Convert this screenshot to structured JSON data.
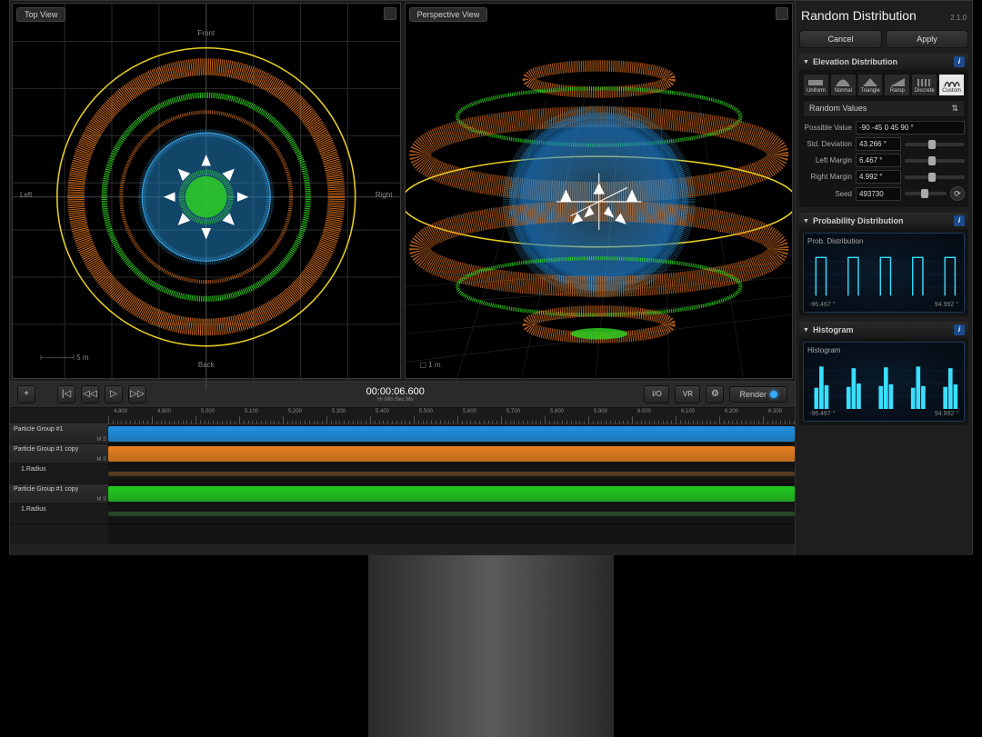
{
  "side": {
    "title": "Random Distribution",
    "version": "2.1.0",
    "cancel": "Cancel",
    "apply": "Apply",
    "elev_section": "Elevation Distribution",
    "dist_types": [
      "Uniform",
      "Normal",
      "Triangle",
      "Ramp",
      "Discrete",
      "Custom"
    ],
    "active_type": 5,
    "dropdown": "Random Values",
    "params": {
      "possible_lbl": "Possible Value",
      "possible_val": "-90 -45 0 45 90 °",
      "std_lbl": "Std. Deviation",
      "std_val": "43.266 °",
      "left_lbl": "Left Margin",
      "left_val": "6.467 °",
      "right_lbl": "Right Margin",
      "right_val": "4.992 °",
      "seed_lbl": "Seed",
      "seed_val": "493730"
    },
    "prob_section": "Probability Distribution",
    "prob_chart_title": "Prob. Distribution",
    "hist_section": "Histogram",
    "hist_chart_title": "Histogram",
    "axis_min": "-96.467 °",
    "axis_max": "94.992 °",
    "chart_color": "#3adfff",
    "chart_bg_grid": "#0a2a4a"
  },
  "viewports": {
    "top_label": "Top View",
    "persp_label": "Perspective View",
    "dir_front": "Front",
    "dir_back": "Back",
    "dir_left": "Left",
    "dir_right": "Right",
    "scale": "5 m",
    "persp_scale": "1 m",
    "ring_colors": {
      "outer": "#e8d020",
      "ring1": "#e87820",
      "ring2": "#30d820",
      "sphere": "#30a0e0",
      "center": "#30d820"
    }
  },
  "transport": {
    "timecode": "00:00:06.600",
    "tc_label": "Hr  Min  Sec  Ms",
    "io": "I/O",
    "vr": "VR",
    "render": "Render"
  },
  "timeline": {
    "ruler_marks": [
      "4.800",
      "4.900",
      "5.000",
      "5.100",
      "5.200",
      "5.300",
      "5.400",
      "5.500",
      "5.600",
      "5.700",
      "5.800",
      "5.900",
      "6.000",
      "6.100",
      "6.200",
      "6.300"
    ],
    "tracks": [
      {
        "label": "Particle Group #1",
        "color": "#2090e0",
        "ms": "M  S"
      },
      {
        "label": "Particle Group #1 copy",
        "color": "#e88020",
        "ms": "M  S"
      },
      {
        "label": "1.Radius",
        "color": "#5a4020",
        "sub": true
      },
      {
        "label": "Particle Group #1 copy",
        "color": "#20c820",
        "ms": "M  S"
      },
      {
        "label": "1.Radius",
        "color": "#2a4a2a",
        "sub": true
      }
    ]
  }
}
